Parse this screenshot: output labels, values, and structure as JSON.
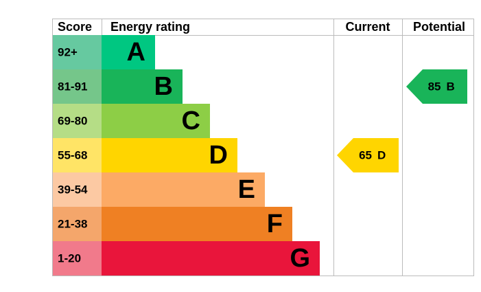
{
  "header": {
    "score": "Score",
    "energy_rating": "Energy rating",
    "current": "Current",
    "potential": "Potential"
  },
  "bands": [
    {
      "range": "92+",
      "letter": "A",
      "color": "#00c781",
      "score_color": "#66c9a0"
    },
    {
      "range": "81-91",
      "letter": "B",
      "color": "#19b459",
      "score_color": "#75c68a"
    },
    {
      "range": "69-80",
      "letter": "C",
      "color": "#8dce46",
      "score_color": "#b5dd86"
    },
    {
      "range": "55-68",
      "letter": "D",
      "color": "#ffd500",
      "score_color": "#ffe466"
    },
    {
      "range": "39-54",
      "letter": "E",
      "color": "#fcaa65",
      "score_color": "#fcc9a3"
    },
    {
      "range": "21-38",
      "letter": "F",
      "color": "#ef8023",
      "score_color": "#f4a66b"
    },
    {
      "range": "1-20",
      "letter": "G",
      "color": "#e9153b",
      "score_color": "#f17a8b"
    }
  ],
  "current": {
    "score": 65,
    "rating": "D"
  },
  "potential": {
    "score": 85,
    "rating": "B"
  }
}
